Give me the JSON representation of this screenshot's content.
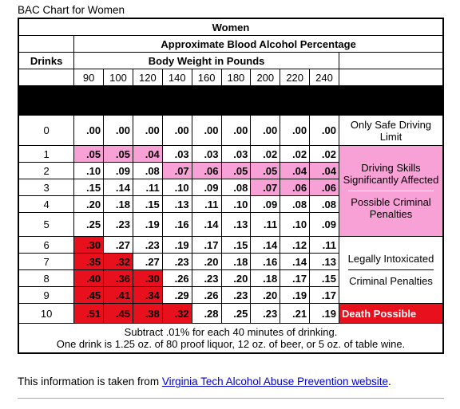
{
  "caption": "BAC Chart for Women",
  "table": {
    "title": "Women",
    "subtitle": "Approximate Blood Alcohol Percentage",
    "drinks_header": "Drinks",
    "weight_header": "Body Weight in Pounds",
    "weights": [
      90,
      100,
      120,
      140,
      160,
      180,
      200,
      220,
      240
    ],
    "rows": [
      {
        "drinks": 0,
        "values": [
          ".00",
          ".00",
          ".00",
          ".00",
          ".00",
          ".00",
          ".00",
          ".00",
          ".00"
        ],
        "colors": [
          null,
          null,
          null,
          null,
          null,
          null,
          null,
          null,
          null
        ]
      },
      {
        "drinks": 1,
        "values": [
          ".05",
          ".05",
          ".04",
          ".03",
          ".03",
          ".03",
          ".02",
          ".02",
          ".02"
        ],
        "colors": [
          "#f7a1d6",
          "#f7a1d6",
          "#f7a1d6",
          null,
          null,
          null,
          null,
          null,
          null
        ]
      },
      {
        "drinks": 2,
        "values": [
          ".10",
          ".09",
          ".08",
          ".07",
          ".06",
          ".05",
          ".05",
          ".04",
          ".04"
        ],
        "colors": [
          null,
          null,
          null,
          "#f7a1d6",
          "#f7a1d6",
          "#f7a1d6",
          "#f7a1d6",
          "#f7a1d6",
          "#f7a1d6"
        ]
      },
      {
        "drinks": 3,
        "values": [
          ".15",
          ".14",
          ".11",
          ".10",
          ".09",
          ".08",
          ".07",
          ".06",
          ".06"
        ],
        "colors": [
          null,
          null,
          null,
          null,
          null,
          null,
          "#f7a1d6",
          "#f7a1d6",
          "#f7a1d6"
        ]
      },
      {
        "drinks": 4,
        "values": [
          ".20",
          ".18",
          ".15",
          ".13",
          ".11",
          ".10",
          ".09",
          ".08",
          ".08"
        ],
        "colors": [
          null,
          null,
          null,
          null,
          null,
          null,
          null,
          null,
          null
        ]
      },
      {
        "drinks": 5,
        "values": [
          ".25",
          ".23",
          ".19",
          ".16",
          ".14",
          ".13",
          ".11",
          ".10",
          ".09"
        ],
        "colors": [
          null,
          null,
          null,
          null,
          null,
          null,
          null,
          null,
          null
        ]
      },
      {
        "drinks": 6,
        "values": [
          ".30",
          ".27",
          ".23",
          ".19",
          ".17",
          ".15",
          ".14",
          ".12",
          ".11"
        ],
        "colors": [
          "#e8101c",
          null,
          null,
          null,
          null,
          null,
          null,
          null,
          null
        ]
      },
      {
        "drinks": 7,
        "values": [
          ".35",
          ".32",
          ".27",
          ".23",
          ".20",
          ".18",
          ".16",
          ".14",
          ".13"
        ],
        "colors": [
          "#e8101c",
          "#e8101c",
          null,
          null,
          null,
          null,
          null,
          null,
          null
        ]
      },
      {
        "drinks": 8,
        "values": [
          ".40",
          ".36",
          ".30",
          ".26",
          ".23",
          ".20",
          ".18",
          ".17",
          ".15"
        ],
        "colors": [
          "#e8101c",
          "#e8101c",
          "#e8101c",
          null,
          null,
          null,
          null,
          null,
          null
        ]
      },
      {
        "drinks": 9,
        "values": [
          ".45",
          ".41",
          ".34",
          ".29",
          ".26",
          ".23",
          ".20",
          ".19",
          ".17"
        ],
        "colors": [
          "#e8101c",
          "#e8101c",
          "#e8101c",
          null,
          null,
          null,
          null,
          null,
          null
        ]
      },
      {
        "drinks": 10,
        "values": [
          ".51",
          ".45",
          ".38",
          ".32",
          ".28",
          ".25",
          ".23",
          ".21",
          ".19"
        ],
        "colors": [
          "#e8101c",
          "#e8101c",
          "#e8101c",
          "#e8101c",
          null,
          null,
          null,
          null,
          null
        ]
      }
    ],
    "notes": [
      {
        "texts": [
          "Only Safe Driving Limit"
        ],
        "color": "#ffffff"
      },
      {
        "texts": [
          "Driving Skills Significantly Affected",
          "Possible Criminal Penalties"
        ],
        "color": "#f7a1d6"
      },
      {
        "texts": [
          "Legally Intoxicated",
          "Criminal Penalties"
        ],
        "color": "#ffffff"
      },
      {
        "texts": [
          "Death Possible"
        ],
        "color": "#e8101c"
      }
    ],
    "footer": [
      "Subtract .01% for each 40 minutes of drinking.",
      "One drink is 1.25 oz. of 80 proof liquor, 12 oz. of beer, or 5 oz. of table wine."
    ]
  },
  "source": {
    "text": "This information is taken from ",
    "link": "Virginia Tech Alcohol Abuse Prevention website",
    "end": "."
  }
}
